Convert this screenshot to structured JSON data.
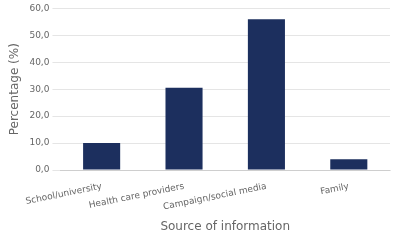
{
  "chart_data": {
    "type": "bar",
    "categories": [
      "School/university",
      "Health care providers",
      "Campaign/social media",
      "Family"
    ],
    "values": [
      10.0,
      30.5,
      56.0,
      4.0
    ],
    "color": "#1c2f5e",
    "xlabel": "Source of information",
    "ylabel": "Percentage (%)",
    "ylim": [
      0,
      60
    ],
    "yticks": [
      {
        "value": 0,
        "label": "0,0"
      },
      {
        "value": 10,
        "label": "10,0"
      },
      {
        "value": 20,
        "label": "20,0"
      },
      {
        "value": 30,
        "label": "30,0"
      },
      {
        "value": 40,
        "label": "40,0"
      },
      {
        "value": 50,
        "label": "50,0"
      },
      {
        "value": 60,
        "label": "60,0"
      }
    ],
    "grid": true
  }
}
